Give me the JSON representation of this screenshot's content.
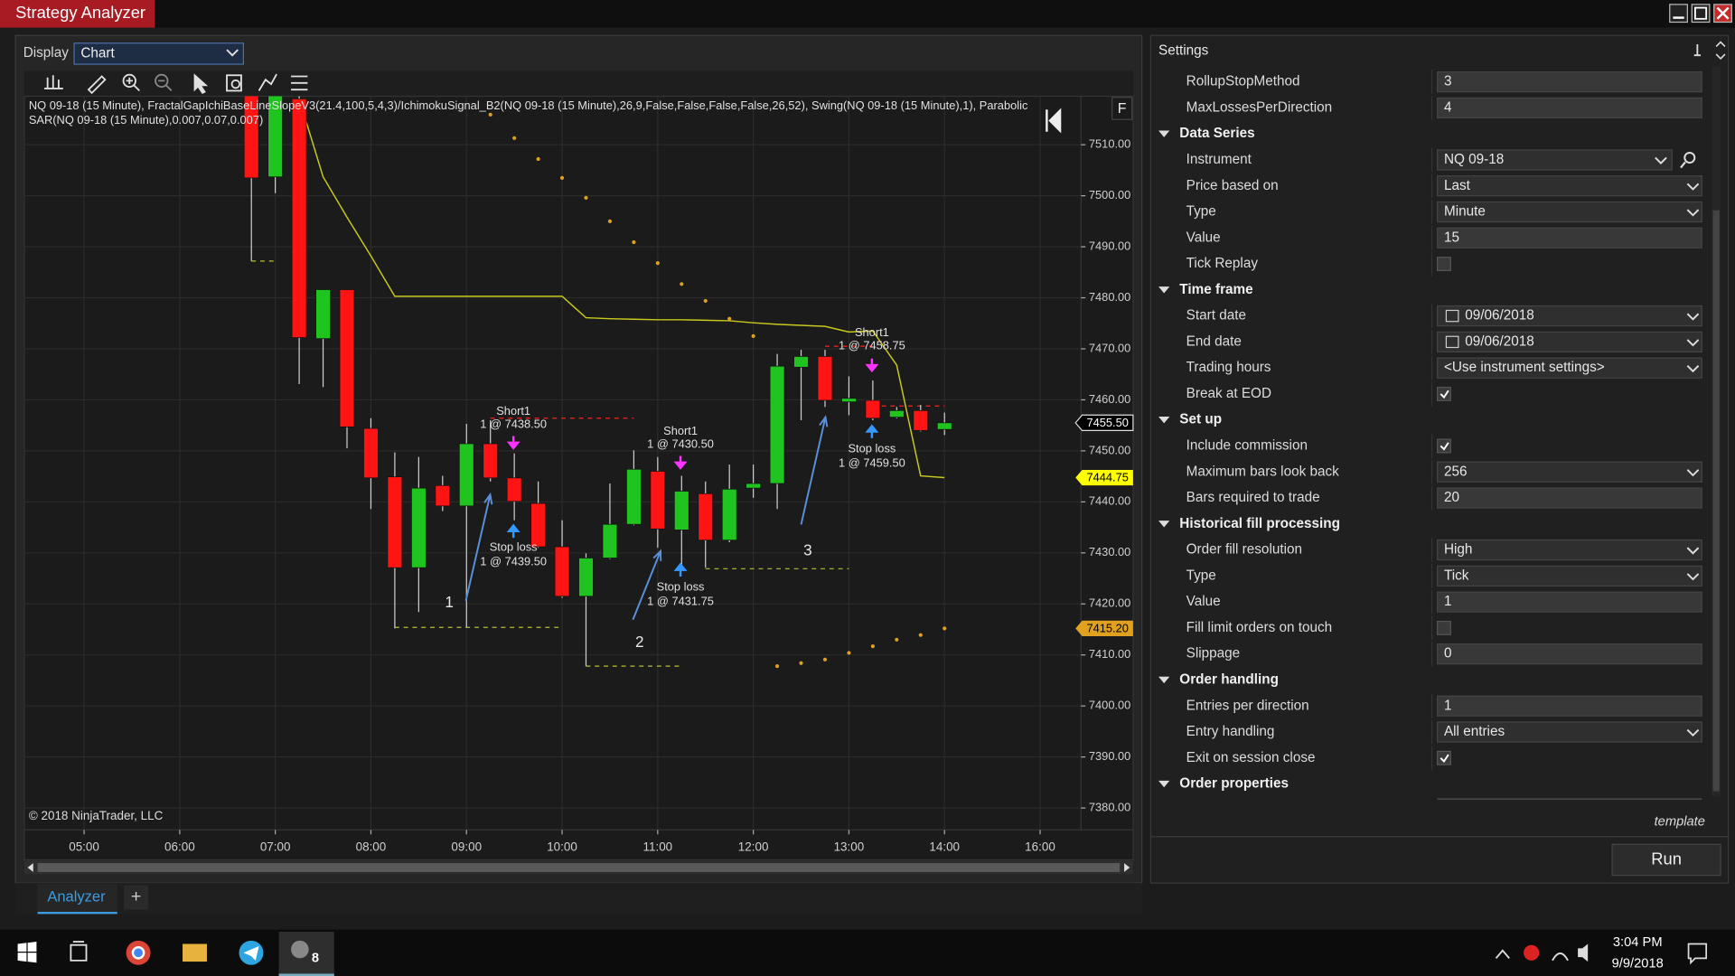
{
  "window": {
    "title": "Strategy Analyzer"
  },
  "display": {
    "label": "Display",
    "value": "Chart"
  },
  "chart_data": {
    "type": "candlestick",
    "indicator_label": "NQ 09-18 (15 Minute), FractalGapIchiBaseLineSlopeV3(21.4,100,5,4,3)/IchimokuSignal_B2(NQ 09-18 (15 Minute),26,9,False,False,False,False,26,52), Swing(NQ 09-18 (15 Minute),1), Parabolic SAR(NQ 09-18 (15 Minute),0.007,0.07,0.007)",
    "copyright": "© 2018 NinjaTrader, LLC",
    "panel_button": "F",
    "categories": [
      null,
      null,
      "05:00",
      null,
      null,
      null,
      "06:00",
      null,
      null,
      null,
      "07:00",
      null,
      null,
      null,
      "08:00",
      null,
      null,
      null,
      "09:00",
      null,
      null,
      null,
      "10:00",
      null,
      null,
      null,
      "11:00",
      null,
      null,
      null,
      "12:00",
      null,
      null,
      null,
      "13:00",
      null,
      null,
      null,
      "14:00",
      null,
      null,
      null,
      "16:00",
      null
    ],
    "open": [
      null,
      null,
      null,
      null,
      null,
      null,
      null,
      null,
      null,
      7520,
      7503.7,
      7519,
      7472.0,
      7481.6,
      7454.4,
      7444.9,
      7427.1,
      7443.2,
      7439.2,
      7451.4,
      7444.7,
      7439.7,
      7431.2,
      7421.5,
      7429.0,
      7435.6,
      7446.0,
      7434.5,
      7441.6,
      7432.5,
      7442.7,
      7443.6,
      7466.4,
      7468.5,
      7459.6,
      7459.9,
      7456.6,
      7457.9,
      7454.2,
      null,
      null,
      null,
      null,
      null
    ],
    "high": [
      null,
      null,
      null,
      null,
      null,
      null,
      null,
      null,
      null,
      7525,
      7525,
      7525,
      7481.6,
      7481.6,
      7456.4,
      7449.7,
      7448.8,
      7445.1,
      7455.3,
      7456.0,
      7449.5,
      7444.0,
      7436.4,
      7429.9,
      7443.6,
      7450.1,
      7448.8,
      7445.1,
      7444.0,
      7447.3,
      7447.3,
      7469.0,
      7469.8,
      7469.8,
      7464.6,
      7463.8,
      7458.6,
      7459.0,
      7457.5,
      null,
      null,
      null,
      null,
      null
    ],
    "low": [
      null,
      null,
      null,
      null,
      null,
      null,
      null,
      null,
      null,
      7487.2,
      7500.5,
      7463.1,
      7462.5,
      7450.5,
      7438.6,
      7415.2,
      7418.4,
      7438.2,
      7415.4,
      7444.0,
      7436.4,
      7431.0,
      7421.2,
      7407.8,
      7428.8,
      7435.4,
      7431.0,
      7427.7,
      7427.1,
      7432.1,
      7440.8,
      7438.6,
      7456.0,
      7458.6,
      7457.0,
      7456.0,
      7456.4,
      7453.8,
      7453.1,
      null,
      null,
      null,
      null,
      null
    ],
    "close": [
      null,
      null,
      null,
      null,
      null,
      null,
      null,
      null,
      null,
      7503.5,
      7520,
      7472.2,
      7481.6,
      7454.7,
      7444.7,
      7427.1,
      7442.7,
      7439.2,
      7451.4,
      7444.7,
      7440.1,
      7431.2,
      7421.5,
      7429.0,
      7435.6,
      7446.4,
      7434.7,
      7442.1,
      7432.5,
      7442.5,
      7443.6,
      7466.6,
      7468.5,
      7459.9,
      7460.3,
      7456.4,
      7457.9,
      7454.0,
      7455.5,
      null,
      null,
      null,
      null,
      null
    ],
    "up_color": "#1fc41f",
    "down_color": "#ff1414",
    "wick_color": "#cfcfcf",
    "series": [
      {
        "color": "#c8c81e",
        "style": "line",
        "values": [
          null,
          null,
          null,
          null,
          null,
          null,
          null,
          null,
          null,
          null,
          null,
          7519,
          7503.7,
          7495.8,
          7488.2,
          7480.3,
          7480.3,
          7480.3,
          7480.3,
          7480.3,
          7480.3,
          7480.3,
          7480.3,
          7476.1,
          7475.9,
          7475.8,
          7475.7,
          7475.7,
          7475.6,
          7475.5,
          7475.1,
          7474.8,
          7474.6,
          7474.4,
          7473.3,
          7473.5,
          7466.8,
          7445.1,
          7444.75,
          null,
          null,
          null,
          null,
          null
        ]
      },
      {
        "color": "#e0a020",
        "style": "dots",
        "values": [
          null,
          null,
          null,
          null,
          null,
          null,
          null,
          null,
          null,
          null,
          null,
          null,
          null,
          null,
          null,
          null,
          null,
          null,
          null,
          7515.9,
          7511.3,
          7507.2,
          7503.5,
          7499.6,
          7495.0,
          7490.9,
          7486.8,
          7482.7,
          7479.4,
          7475.9,
          7472.5,
          7407.8,
          7408.4,
          7409.1,
          7410.4,
          7411.7,
          7413.0,
          7413.9,
          7415.2,
          null,
          null,
          null,
          null,
          null
        ]
      },
      {
        "color": "#b8c030",
        "style": "dashed",
        "values": [
          null,
          null,
          null,
          null,
          null,
          null,
          null,
          null,
          null,
          7487.2,
          7487.2,
          null,
          null,
          null,
          null,
          null,
          null,
          null,
          null,
          null,
          null,
          null,
          null,
          null,
          null,
          null,
          null,
          null,
          null,
          null,
          null,
          null,
          null,
          null,
          null,
          null,
          null,
          null,
          null,
          null,
          null,
          null,
          null,
          null
        ]
      },
      {
        "color": "#b8c030",
        "style": "dashed",
        "values": [
          null,
          null,
          null,
          null,
          null,
          null,
          null,
          null,
          null,
          null,
          null,
          null,
          null,
          null,
          null,
          7415.4,
          7415.4,
          7415.4,
          7415.4,
          7415.4,
          7415.4,
          7415.4,
          7415.4,
          null,
          null,
          null,
          null,
          null,
          null,
          null,
          null,
          null,
          null,
          null,
          null,
          null,
          null,
          null,
          null,
          null,
          null,
          null,
          null,
          null
        ]
      },
      {
        "color": "#ff2020",
        "style": "dashed",
        "values": [
          null,
          null,
          null,
          null,
          null,
          null,
          null,
          null,
          null,
          null,
          null,
          null,
          null,
          null,
          null,
          null,
          null,
          null,
          null,
          7456.4,
          7456.4,
          7456.4,
          7456.4,
          7456.4,
          7456.4,
          7456.4,
          null,
          null,
          null,
          null,
          null,
          null,
          null,
          null,
          null,
          null,
          null,
          null,
          null,
          null,
          null,
          null,
          null,
          null
        ]
      },
      {
        "color": "#b8c030",
        "style": "dashed",
        "values": [
          null,
          null,
          null,
          null,
          null,
          null,
          null,
          null,
          null,
          null,
          null,
          null,
          null,
          null,
          null,
          null,
          null,
          null,
          null,
          null,
          null,
          null,
          null,
          7407.8,
          7407.8,
          7407.8,
          7407.8,
          7407.8,
          null,
          null,
          null,
          null,
          null,
          null,
          null,
          null,
          null,
          null,
          null,
          null,
          null,
          null,
          null,
          null
        ]
      },
      {
        "color": "#b8c030",
        "style": "dashed",
        "values": [
          null,
          null,
          null,
          null,
          null,
          null,
          null,
          null,
          null,
          null,
          null,
          null,
          null,
          null,
          null,
          null,
          null,
          null,
          null,
          null,
          null,
          null,
          null,
          null,
          null,
          null,
          null,
          null,
          7426.9,
          7426.9,
          7426.9,
          7426.9,
          7426.9,
          7426.9,
          7426.9,
          null,
          null,
          null,
          null,
          null,
          null,
          null,
          null,
          null
        ]
      },
      {
        "color": "#ff2020",
        "style": "dashed",
        "values": [
          null,
          null,
          null,
          null,
          null,
          null,
          null,
          null,
          null,
          null,
          null,
          null,
          null,
          null,
          null,
          null,
          null,
          null,
          null,
          null,
          null,
          null,
          null,
          null,
          null,
          null,
          null,
          null,
          null,
          null,
          null,
          null,
          null,
          7470.5,
          7470.5,
          7470.5,
          null,
          null,
          null,
          null,
          null,
          null,
          null,
          null
        ]
      },
      {
        "color": "#ff2020",
        "style": "dashed",
        "values": [
          null,
          null,
          null,
          null,
          null,
          null,
          null,
          null,
          null,
          null,
          null,
          null,
          null,
          null,
          null,
          null,
          null,
          null,
          null,
          null,
          null,
          null,
          null,
          null,
          null,
          null,
          null,
          null,
          null,
          null,
          null,
          null,
          null,
          null,
          null,
          7458.8,
          7458.8,
          7458.8,
          7458.8,
          null,
          null,
          null,
          null,
          null
        ]
      }
    ],
    "ylim": [
      7375.7,
      7519.5
    ],
    "yticks": [
      {
        "value": 7380,
        "label": "7380.00"
      },
      {
        "value": 7390,
        "label": "7390.00"
      },
      {
        "value": 7400,
        "label": "7400.00"
      },
      {
        "value": 7410,
        "label": "7410.00"
      },
      {
        "value": 7420,
        "label": "7420.00"
      },
      {
        "value": 7430,
        "label": "7430.00"
      },
      {
        "value": 7440,
        "label": "7440.00"
      },
      {
        "value": 7450,
        "label": "7450.00"
      },
      {
        "value": 7460,
        "label": "7460.00"
      },
      {
        "value": 7470,
        "label": "7470.00"
      },
      {
        "value": 7480,
        "label": "7480.00"
      },
      {
        "value": 7490,
        "label": "7490.00"
      },
      {
        "value": 7500,
        "label": "7500.00"
      },
      {
        "value": 7510,
        "label": "7510.00"
      }
    ],
    "grid": true,
    "price_markers": [
      {
        "value": 7455.5,
        "label": "7455.50",
        "color": "#000000",
        "text_color": "#ffffff"
      },
      {
        "value": 7444.75,
        "label": "7444.75",
        "color": "#ffff00",
        "text_color": "#000000"
      },
      {
        "value": 7415.2,
        "label": "7415.20",
        "color": "#e0a020",
        "text_color": "#000000"
      }
    ],
    "trades": [
      {
        "entry_label": "Short1",
        "entry_text": "1 @ 7438.50",
        "exit_label": "Stop loss",
        "exit_text": "1 @ 7439.50",
        "number": "1"
      },
      {
        "entry_label": "Short1",
        "entry_text": "1 @ 7430.50",
        "exit_label": "Stop loss",
        "exit_text": "1 @ 7431.75",
        "number": "2"
      },
      {
        "entry_label": "Short1",
        "entry_text": "1 @ 7458.75",
        "exit_label": "Stop loss",
        "exit_text": "1 @ 7459.50",
        "number": "3"
      }
    ]
  },
  "settings": {
    "title": "Settings",
    "rows": [
      {
        "label": "RollupStopMethod",
        "value": "3"
      },
      {
        "label": "MaxLossesPerDirection",
        "value": "4"
      }
    ],
    "groups": [
      {
        "title": "Data Series",
        "rows": [
          {
            "label": "Instrument",
            "value": "NQ 09-18",
            "kind": "instrument"
          },
          {
            "label": "Price based on",
            "value": "Last",
            "kind": "dropdown"
          },
          {
            "label": "Type",
            "value": "Minute",
            "kind": "dropdown"
          },
          {
            "label": "Value",
            "value": "15"
          },
          {
            "label": "Tick Replay",
            "kind": "checkbox",
            "checked": false
          }
        ]
      },
      {
        "title": "Time frame",
        "rows": [
          {
            "label": "Start date",
            "value": "09/06/2018",
            "kind": "date"
          },
          {
            "label": "End date",
            "value": "09/06/2018",
            "kind": "date"
          },
          {
            "label": "Trading hours",
            "value": "<Use instrument settings>",
            "kind": "dropdown"
          },
          {
            "label": "Break at EOD",
            "kind": "checkbox",
            "checked": true
          }
        ]
      },
      {
        "title": "Set up",
        "rows": [
          {
            "label": "Include commission",
            "kind": "checkbox",
            "checked": true
          },
          {
            "label": "Maximum bars look back",
            "value": "256",
            "kind": "dropdown"
          },
          {
            "label": "Bars required to trade",
            "value": "20"
          }
        ]
      },
      {
        "title": "Historical fill processing",
        "rows": [
          {
            "label": "Order fill resolution",
            "value": "High",
            "kind": "dropdown"
          },
          {
            "label": "Type",
            "value": "Tick",
            "kind": "dropdown"
          },
          {
            "label": "Value",
            "value": "1"
          },
          {
            "label": "Fill limit orders on touch",
            "kind": "checkbox",
            "checked": false
          },
          {
            "label": "Slippage",
            "value": "0"
          }
        ]
      },
      {
        "title": "Order handling",
        "rows": [
          {
            "label": "Entries per direction",
            "value": "1"
          },
          {
            "label": "Entry handling",
            "value": "All entries",
            "kind": "dropdown"
          },
          {
            "label": "Exit on session close",
            "kind": "checkbox",
            "checked": true
          }
        ]
      },
      {
        "title": "Order properties",
        "rows": []
      }
    ],
    "template": "template",
    "run": "Run"
  },
  "tabs": {
    "active": "Analyzer",
    "add": "+"
  },
  "taskbar": {
    "time": "3:04 PM",
    "date": "9/9/2018",
    "badge": "8"
  }
}
